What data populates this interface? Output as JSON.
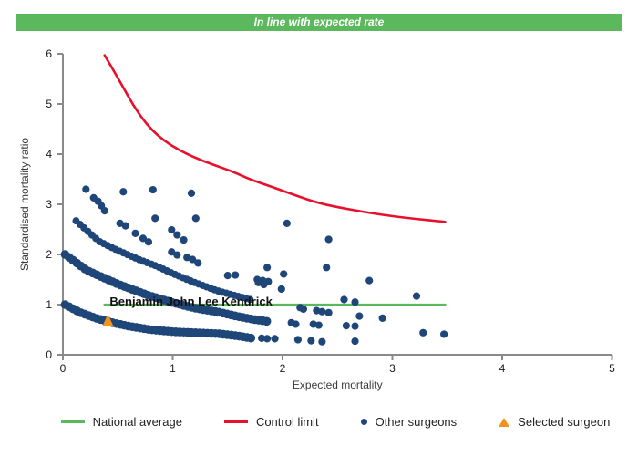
{
  "banner": {
    "text": "In line with expected rate",
    "bg": "#5cb85c",
    "fg": "#ffffff"
  },
  "chart_data": {
    "type": "scatter",
    "title": "",
    "xlabel": "Expected mortality",
    "ylabel": "Standardised mortality ratio",
    "xlim": [
      0,
      5
    ],
    "ylim": [
      0,
      6
    ],
    "xticks": [
      0,
      1,
      2,
      3,
      4,
      5
    ],
    "yticks": [
      0,
      1,
      2,
      3,
      4,
      5,
      6
    ],
    "grid": false,
    "legend_position": "bottom",
    "national_average": {
      "label": "National average",
      "color": "#5cb85c",
      "y": 1.0,
      "x_start": 0.37,
      "x_end": 3.49
    },
    "control_limit": {
      "label": "Control limit",
      "color": "#e8112d",
      "points": [
        [
          0.38,
          5.97
        ],
        [
          0.44,
          5.75
        ],
        [
          0.5,
          5.52
        ],
        [
          0.57,
          5.25
        ],
        [
          0.64,
          4.98
        ],
        [
          0.72,
          4.72
        ],
        [
          0.81,
          4.48
        ],
        [
          0.92,
          4.27
        ],
        [
          1.05,
          4.09
        ],
        [
          1.2,
          3.93
        ],
        [
          1.38,
          3.78
        ],
        [
          1.56,
          3.64
        ],
        [
          1.7,
          3.5
        ],
        [
          1.9,
          3.35
        ],
        [
          2.1,
          3.19
        ],
        [
          2.33,
          3.02
        ],
        [
          2.6,
          2.9
        ],
        [
          2.9,
          2.79
        ],
        [
          3.2,
          2.71
        ],
        [
          3.48,
          2.65
        ]
      ]
    },
    "other_surgeons": {
      "label": "Other surgeons",
      "color": "#1f4678",
      "bands": [
        {
          "name": "band-low",
          "r": 4.8,
          "points": [
            [
              0.02,
              1.0
            ],
            [
              0.15,
              0.85
            ],
            [
              0.3,
              0.73
            ],
            [
              0.45,
              0.64
            ],
            [
              0.6,
              0.57
            ],
            [
              0.8,
              0.5
            ],
            [
              1.0,
              0.46
            ],
            [
              1.2,
              0.44
            ],
            [
              1.42,
              0.42
            ],
            [
              1.58,
              0.38
            ],
            [
              1.72,
              0.33
            ]
          ]
        },
        {
          "name": "band-mid",
          "r": 4.8,
          "points": [
            [
              0.02,
              2.0
            ],
            [
              0.22,
              1.68
            ],
            [
              0.5,
              1.41
            ],
            [
              0.77,
              1.19
            ],
            [
              1.0,
              1.04
            ],
            [
              1.2,
              0.93
            ],
            [
              1.42,
              0.85
            ],
            [
              1.6,
              0.76
            ],
            [
              1.75,
              0.7
            ],
            [
              1.88,
              0.66
            ]
          ]
        },
        {
          "name": "band-high",
          "r": 4.0,
          "points": [
            [
              0.12,
              2.67
            ],
            [
              0.33,
              2.26
            ],
            [
              0.5,
              2.08
            ],
            [
              0.69,
              1.9
            ],
            [
              0.85,
              1.77
            ],
            [
              1.0,
              1.62
            ],
            [
              1.2,
              1.44
            ],
            [
              1.4,
              1.28
            ],
            [
              1.55,
              1.19
            ],
            [
              1.71,
              1.1
            ]
          ]
        }
      ],
      "dots": [
        [
          0.21,
          3.3
        ],
        [
          0.28,
          3.13
        ],
        [
          0.32,
          3.06
        ],
        [
          0.35,
          2.97
        ],
        [
          0.38,
          2.87
        ],
        [
          0.55,
          3.25
        ],
        [
          0.82,
          3.29
        ],
        [
          1.17,
          3.22
        ],
        [
          0.84,
          2.72
        ],
        [
          1.21,
          2.72
        ],
        [
          0.52,
          2.62
        ],
        [
          0.57,
          2.57
        ],
        [
          0.66,
          2.42
        ],
        [
          0.73,
          2.32
        ],
        [
          0.78,
          2.25
        ],
        [
          0.99,
          2.49
        ],
        [
          1.04,
          2.39
        ],
        [
          1.1,
          2.29
        ],
        [
          0.99,
          2.05
        ],
        [
          1.04,
          1.99
        ],
        [
          1.13,
          1.94
        ],
        [
          1.18,
          1.9
        ],
        [
          1.23,
          1.83
        ],
        [
          2.04,
          2.62
        ],
        [
          2.42,
          2.3
        ],
        [
          2.4,
          1.74
        ],
        [
          2.79,
          1.48
        ],
        [
          1.5,
          1.58
        ],
        [
          1.57,
          1.59
        ],
        [
          1.77,
          1.5
        ],
        [
          1.82,
          1.48
        ],
        [
          1.87,
          1.46
        ],
        [
          1.86,
          1.74
        ],
        [
          2.01,
          1.61
        ],
        [
          1.78,
          1.44
        ],
        [
          1.83,
          1.4
        ],
        [
          1.99,
          1.31
        ],
        [
          2.16,
          0.94
        ],
        [
          2.19,
          0.91
        ],
        [
          2.31,
          0.88
        ],
        [
          2.36,
          0.86
        ],
        [
          2.42,
          0.84
        ],
        [
          2.56,
          1.1
        ],
        [
          2.66,
          1.05
        ],
        [
          2.7,
          0.77
        ],
        [
          2.91,
          0.73
        ],
        [
          2.08,
          0.64
        ],
        [
          2.12,
          0.61
        ],
        [
          2.28,
          0.61
        ],
        [
          2.33,
          0.59
        ],
        [
          2.58,
          0.58
        ],
        [
          2.66,
          0.57
        ],
        [
          1.81,
          0.33
        ],
        [
          1.86,
          0.32
        ],
        [
          1.93,
          0.32
        ],
        [
          2.14,
          0.3
        ],
        [
          2.26,
          0.28
        ],
        [
          2.36,
          0.26
        ],
        [
          2.66,
          0.27
        ],
        [
          3.22,
          1.17
        ],
        [
          3.28,
          0.44
        ],
        [
          3.47,
          0.41
        ]
      ]
    },
    "selected_surgeon": {
      "label": "Selected surgeon",
      "color": "#f5921e",
      "name": "Benjamin John Lee Kendrick",
      "x": 0.41,
      "y": 0.69
    }
  },
  "legend": {
    "note": "labels bound from chart_data series labels"
  }
}
